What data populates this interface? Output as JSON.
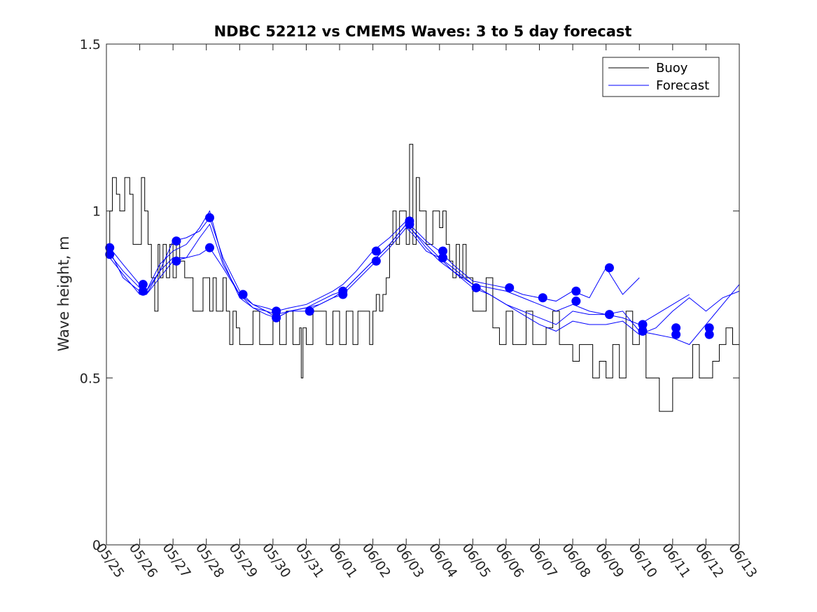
{
  "chart_data": {
    "type": "line",
    "title": "NDBC 52212 vs CMEMS Waves: 3 to 5 day forecast",
    "xlabel": "",
    "ylabel": "Wave height, m",
    "x_tick_labels": [
      "05/25",
      "05/26",
      "05/27",
      "05/28",
      "05/29",
      "05/30",
      "05/31",
      "06/01",
      "06/02",
      "06/03",
      "06/04",
      "06/05",
      "06/06",
      "06/07",
      "06/08",
      "06/09",
      "06/10",
      "06/11",
      "06/12",
      "06/13"
    ],
    "y_tick_labels": [
      "0",
      "0.5",
      "1",
      "1.5"
    ],
    "xlim": [
      0,
      19
    ],
    "ylim": [
      0,
      1.5
    ],
    "grid": false,
    "legend_position": "top-right",
    "legend": [
      {
        "label": "Buoy",
        "color": "#000000"
      },
      {
        "label": "Forecast",
        "color": "#0000ff"
      }
    ],
    "buoy": {
      "name": "Buoy",
      "color": "#000000",
      "x": [
        0.0,
        0.1,
        0.18,
        0.3,
        0.4,
        0.55,
        0.7,
        0.8,
        0.95,
        1.05,
        1.15,
        1.25,
        1.35,
        1.45,
        1.55,
        1.6,
        1.7,
        1.8,
        1.9,
        2.0,
        2.1,
        2.2,
        2.35,
        2.5,
        2.6,
        2.7,
        2.8,
        2.9,
        3.0,
        3.1,
        3.2,
        3.3,
        3.4,
        3.5,
        3.6,
        3.7,
        3.8,
        3.9,
        4.0,
        4.2,
        4.4,
        4.6,
        4.8,
        5.0,
        5.2,
        5.4,
        5.6,
        5.8,
        5.85,
        5.9,
        6.0,
        6.2,
        6.4,
        6.6,
        6.8,
        7.0,
        7.2,
        7.4,
        7.55,
        7.7,
        7.9,
        8.0,
        8.1,
        8.2,
        8.3,
        8.4,
        8.5,
        8.6,
        8.7,
        8.8,
        8.9,
        9.0,
        9.1,
        9.2,
        9.3,
        9.4,
        9.6,
        9.8,
        10.0,
        10.1,
        10.2,
        10.3,
        10.4,
        10.5,
        10.6,
        10.7,
        10.8,
        10.9,
        11.0,
        11.2,
        11.4,
        11.6,
        11.8,
        12.0,
        12.2,
        12.4,
        12.6,
        12.8,
        13.0,
        13.2,
        13.4,
        13.6,
        13.8,
        14.0,
        14.2,
        14.4,
        14.6,
        14.8,
        15.0,
        15.2,
        15.4,
        15.6,
        15.8,
        16.0,
        16.2,
        16.4,
        16.6,
        16.8,
        17.0,
        17.2,
        17.4,
        17.6,
        17.8,
        18.0,
        18.2,
        18.4,
        18.6,
        18.8,
        19.0
      ],
      "values": [
        0.9,
        1.0,
        1.1,
        1.05,
        1.0,
        1.1,
        1.05,
        0.9,
        0.9,
        1.1,
        1.0,
        0.9,
        0.8,
        0.7,
        0.9,
        0.8,
        0.9,
        0.8,
        0.9,
        0.8,
        0.9,
        0.85,
        0.8,
        0.8,
        0.7,
        0.7,
        0.7,
        0.8,
        0.8,
        0.7,
        0.8,
        0.7,
        0.7,
        0.8,
        0.7,
        0.6,
        0.7,
        0.65,
        0.6,
        0.6,
        0.7,
        0.6,
        0.6,
        0.7,
        0.6,
        0.7,
        0.6,
        0.65,
        0.5,
        0.65,
        0.6,
        0.7,
        0.7,
        0.6,
        0.7,
        0.6,
        0.7,
        0.6,
        0.7,
        0.7,
        0.6,
        0.7,
        0.75,
        0.7,
        0.75,
        0.8,
        0.9,
        1.0,
        0.9,
        1.0,
        1.0,
        0.9,
        1.2,
        0.9,
        1.1,
        1.0,
        0.9,
        1.0,
        0.95,
        1.0,
        0.9,
        0.85,
        0.8,
        0.9,
        0.8,
        0.9,
        0.8,
        0.8,
        0.7,
        0.7,
        0.8,
        0.65,
        0.6,
        0.7,
        0.6,
        0.6,
        0.7,
        0.6,
        0.6,
        0.65,
        0.7,
        0.6,
        0.6,
        0.55,
        0.6,
        0.6,
        0.5,
        0.55,
        0.5,
        0.6,
        0.5,
        0.7,
        0.6,
        0.65,
        0.5,
        0.5,
        0.4,
        0.4,
        0.5,
        0.5,
        0.5,
        0.6,
        0.5,
        0.5,
        0.55,
        0.6,
        0.65,
        0.6,
        0.5
      ]
    },
    "forecast_series": [
      {
        "name": "Forecast",
        "x": [
          0.1,
          0.5,
          1.0,
          1.2,
          1.6,
          2.0,
          2.4,
          2.8,
          3.1,
          3.5,
          4.0,
          4.4,
          4.8,
          5.1,
          5.5,
          6.0,
          6.4,
          6.8,
          7.1,
          7.5,
          8.0,
          8.5,
          9.0,
          9.2,
          9.6,
          10.0,
          10.4,
          11.0,
          11.5,
          12.0,
          12.5,
          13.0,
          13.5,
          14.0,
          14.5,
          15.0,
          15.5,
          16.0
        ],
        "values": [
          0.89,
          0.84,
          0.78,
          0.76,
          0.82,
          0.91,
          0.92,
          0.94,
          0.98,
          0.86,
          0.76,
          0.72,
          0.71,
          0.7,
          0.71,
          0.72,
          0.74,
          0.76,
          0.78,
          0.82,
          0.88,
          0.92,
          0.97,
          0.95,
          0.91,
          0.88,
          0.84,
          0.79,
          0.78,
          0.77,
          0.75,
          0.74,
          0.73,
          0.76,
          0.74,
          0.83,
          0.75,
          0.8
        ]
      },
      {
        "name": "Forecast",
        "x": [
          0.1,
          0.5,
          1.0,
          1.2,
          1.6,
          2.0,
          2.4,
          2.8,
          3.1,
          3.5,
          4.0,
          4.4,
          4.8,
          5.1,
          5.5,
          6.0,
          6.4,
          6.8,
          7.1,
          7.5,
          8.0,
          8.5,
          9.0,
          9.2,
          9.6,
          10.0,
          10.4,
          11.0,
          11.5,
          12.0,
          12.5,
          13.0,
          13.5,
          14.0,
          14.5,
          15.0,
          15.5,
          16.0,
          16.5,
          17.0,
          17.5
        ],
        "values": [
          0.87,
          0.82,
          0.77,
          0.75,
          0.8,
          0.85,
          0.86,
          0.87,
          0.89,
          0.83,
          0.75,
          0.72,
          0.7,
          0.68,
          0.7,
          0.71,
          0.73,
          0.75,
          0.76,
          0.8,
          0.85,
          0.9,
          0.96,
          0.94,
          0.9,
          0.86,
          0.82,
          0.78,
          0.77,
          0.76,
          0.74,
          0.72,
          0.7,
          0.72,
          0.7,
          0.69,
          0.68,
          0.66,
          0.69,
          0.72,
          0.75
        ]
      },
      {
        "name": "Forecast",
        "x": [
          0.1,
          0.5,
          1.0,
          1.2,
          1.6,
          2.0,
          2.4,
          2.8,
          3.1,
          3.5,
          4.0,
          4.4,
          4.8,
          5.1,
          5.5,
          6.0,
          6.4,
          6.8,
          7.1,
          7.5,
          8.0,
          8.5,
          9.0,
          9.2,
          9.6,
          10.0,
          10.4,
          11.0,
          11.5,
          12.0,
          12.5,
          13.0,
          13.5,
          14.0,
          14.5,
          15.0,
          15.5,
          16.0,
          16.5,
          17.0,
          17.5,
          18.0,
          18.5,
          19.0
        ],
        "values": [
          0.88,
          0.8,
          0.76,
          0.76,
          0.84,
          0.88,
          0.9,
          0.95,
          1.0,
          0.85,
          0.74,
          0.71,
          0.7,
          0.69,
          0.7,
          0.7,
          0.72,
          0.74,
          0.75,
          0.79,
          0.84,
          0.89,
          0.95,
          0.93,
          0.88,
          0.86,
          0.83,
          0.78,
          0.75,
          0.72,
          0.7,
          0.68,
          0.66,
          0.7,
          0.69,
          0.69,
          0.7,
          0.64,
          0.63,
          0.62,
          0.6,
          0.66,
          0.72,
          0.78
        ]
      },
      {
        "name": "Forecast",
        "x": [
          0.1,
          0.5,
          1.0,
          1.2,
          1.6,
          2.0,
          2.4,
          2.8,
          3.1,
          3.5,
          4.0,
          4.4,
          4.8,
          5.1,
          5.5,
          6.0,
          6.4,
          6.8,
          7.1,
          7.5,
          8.0,
          8.5,
          9.0,
          9.2,
          9.6,
          10.0,
          10.4,
          11.0,
          11.5,
          12.0,
          12.5,
          13.0,
          13.5,
          14.0,
          14.5,
          15.0,
          15.5,
          16.0,
          16.5,
          17.0,
          17.5,
          18.0,
          18.5,
          19.0
        ],
        "values": [
          0.86,
          0.81,
          0.75,
          0.75,
          0.82,
          0.86,
          0.86,
          0.92,
          0.96,
          0.84,
          0.75,
          0.71,
          0.69,
          0.68,
          0.7,
          0.71,
          0.72,
          0.74,
          0.76,
          0.8,
          0.85,
          0.9,
          0.96,
          0.94,
          0.89,
          0.85,
          0.82,
          0.77,
          0.75,
          0.72,
          0.69,
          0.66,
          0.64,
          0.67,
          0.66,
          0.66,
          0.67,
          0.63,
          0.65,
          0.7,
          0.74,
          0.7,
          0.74,
          0.76
        ]
      }
    ],
    "forecast_markers": {
      "x": [
        0.1,
        0.1,
        1.1,
        1.1,
        2.1,
        2.1,
        3.1,
        3.1,
        4.1,
        5.1,
        5.1,
        6.1,
        7.1,
        7.1,
        8.1,
        8.1,
        9.1,
        9.1,
        10.1,
        10.1,
        11.1,
        12.1,
        13.1,
        14.1,
        14.1,
        15.1,
        15.1,
        16.1,
        16.1,
        17.1,
        17.1,
        18.1,
        18.1
      ],
      "values": [
        0.89,
        0.87,
        0.78,
        0.76,
        0.91,
        0.85,
        0.98,
        0.89,
        0.75,
        0.7,
        0.68,
        0.7,
        0.76,
        0.75,
        0.88,
        0.85,
        0.97,
        0.96,
        0.88,
        0.86,
        0.77,
        0.77,
        0.74,
        0.76,
        0.73,
        0.83,
        0.69,
        0.66,
        0.64,
        0.65,
        0.63,
        0.65,
        0.63
      ],
      "color": "#0000ff"
    }
  }
}
